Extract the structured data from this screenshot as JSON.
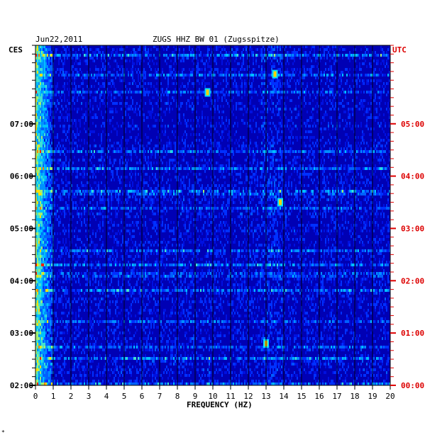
{
  "header": {
    "date": "Jun22,2011",
    "station": "ZUGS HHZ BW 01 (Zugsspitze)",
    "left_zone": "CES",
    "right_zone": "UTC"
  },
  "footer": {
    "mark": "*"
  },
  "colors": {
    "low": "#0000a0",
    "mid": "#00a0ff",
    "high": "#ffd000",
    "peak": "#ff2000",
    "utc": "#dd0000",
    "grid": "#000000"
  },
  "chart_data": {
    "type": "heatmap",
    "title": "ZUGS HHZ BW 01 (Zugsspitze)",
    "xlabel": "FREQUENCY (HZ)",
    "xlim": [
      0,
      20
    ],
    "x_ticks": [
      "0",
      "1",
      "2",
      "3",
      "4",
      "5",
      "6",
      "7",
      "8",
      "9",
      "10",
      "11",
      "12",
      "13",
      "14",
      "15",
      "16",
      "17",
      "18",
      "19",
      "20"
    ],
    "y_ticks_left": [
      "07:00",
      "06:00",
      "05:00",
      "04:00",
      "03:00",
      "02:00"
    ],
    "y_ticks_right": [
      "05:00",
      "04:00",
      "03:00",
      "02:00",
      "01:00",
      "00:00"
    ],
    "y_tick_hours": [
      5,
      4,
      3,
      2,
      1,
      0
    ],
    "ylim_hours_utc": [
      0,
      6
    ],
    "hot_features": [
      {
        "freq": 0.3,
        "desc": "strong low-frequency energy along left edge"
      },
      {
        "freq": 9.7,
        "utc_hour": 5.6
      },
      {
        "freq": 13.5,
        "utc_hour": 5.95
      },
      {
        "freq": 13.8,
        "utc_hour": 3.5
      },
      {
        "freq": 13.0,
        "utc_hour": 0.8
      }
    ]
  }
}
